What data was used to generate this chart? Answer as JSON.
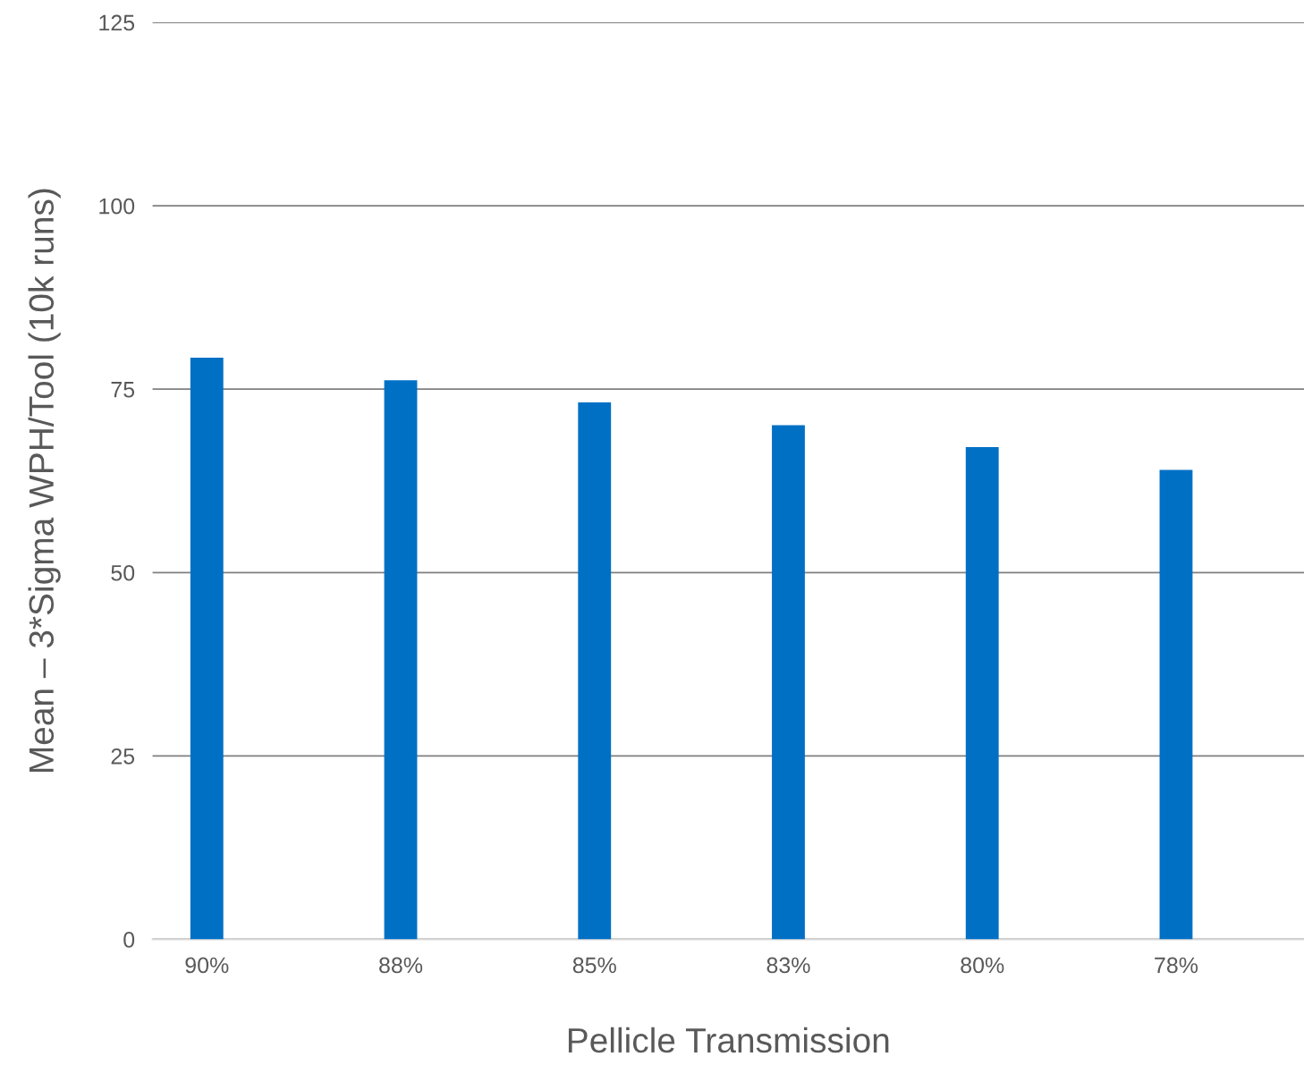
{
  "chart_data": {
    "type": "bar",
    "xlabel": "Pellicle Transmission",
    "ylabel": "Mean – 3*Sigma WPH/Tool (10k runs)",
    "categories": [
      "90%",
      "88%",
      "85%",
      "83%",
      "80%",
      "78%"
    ],
    "values": [
      79.3,
      76.2,
      73.2,
      70.1,
      67.1,
      64.0
    ],
    "color": "#0070c5",
    "ylim": [
      0,
      125
    ],
    "yticks": [
      0,
      25,
      50,
      75,
      100,
      125
    ],
    "grid": "y"
  }
}
